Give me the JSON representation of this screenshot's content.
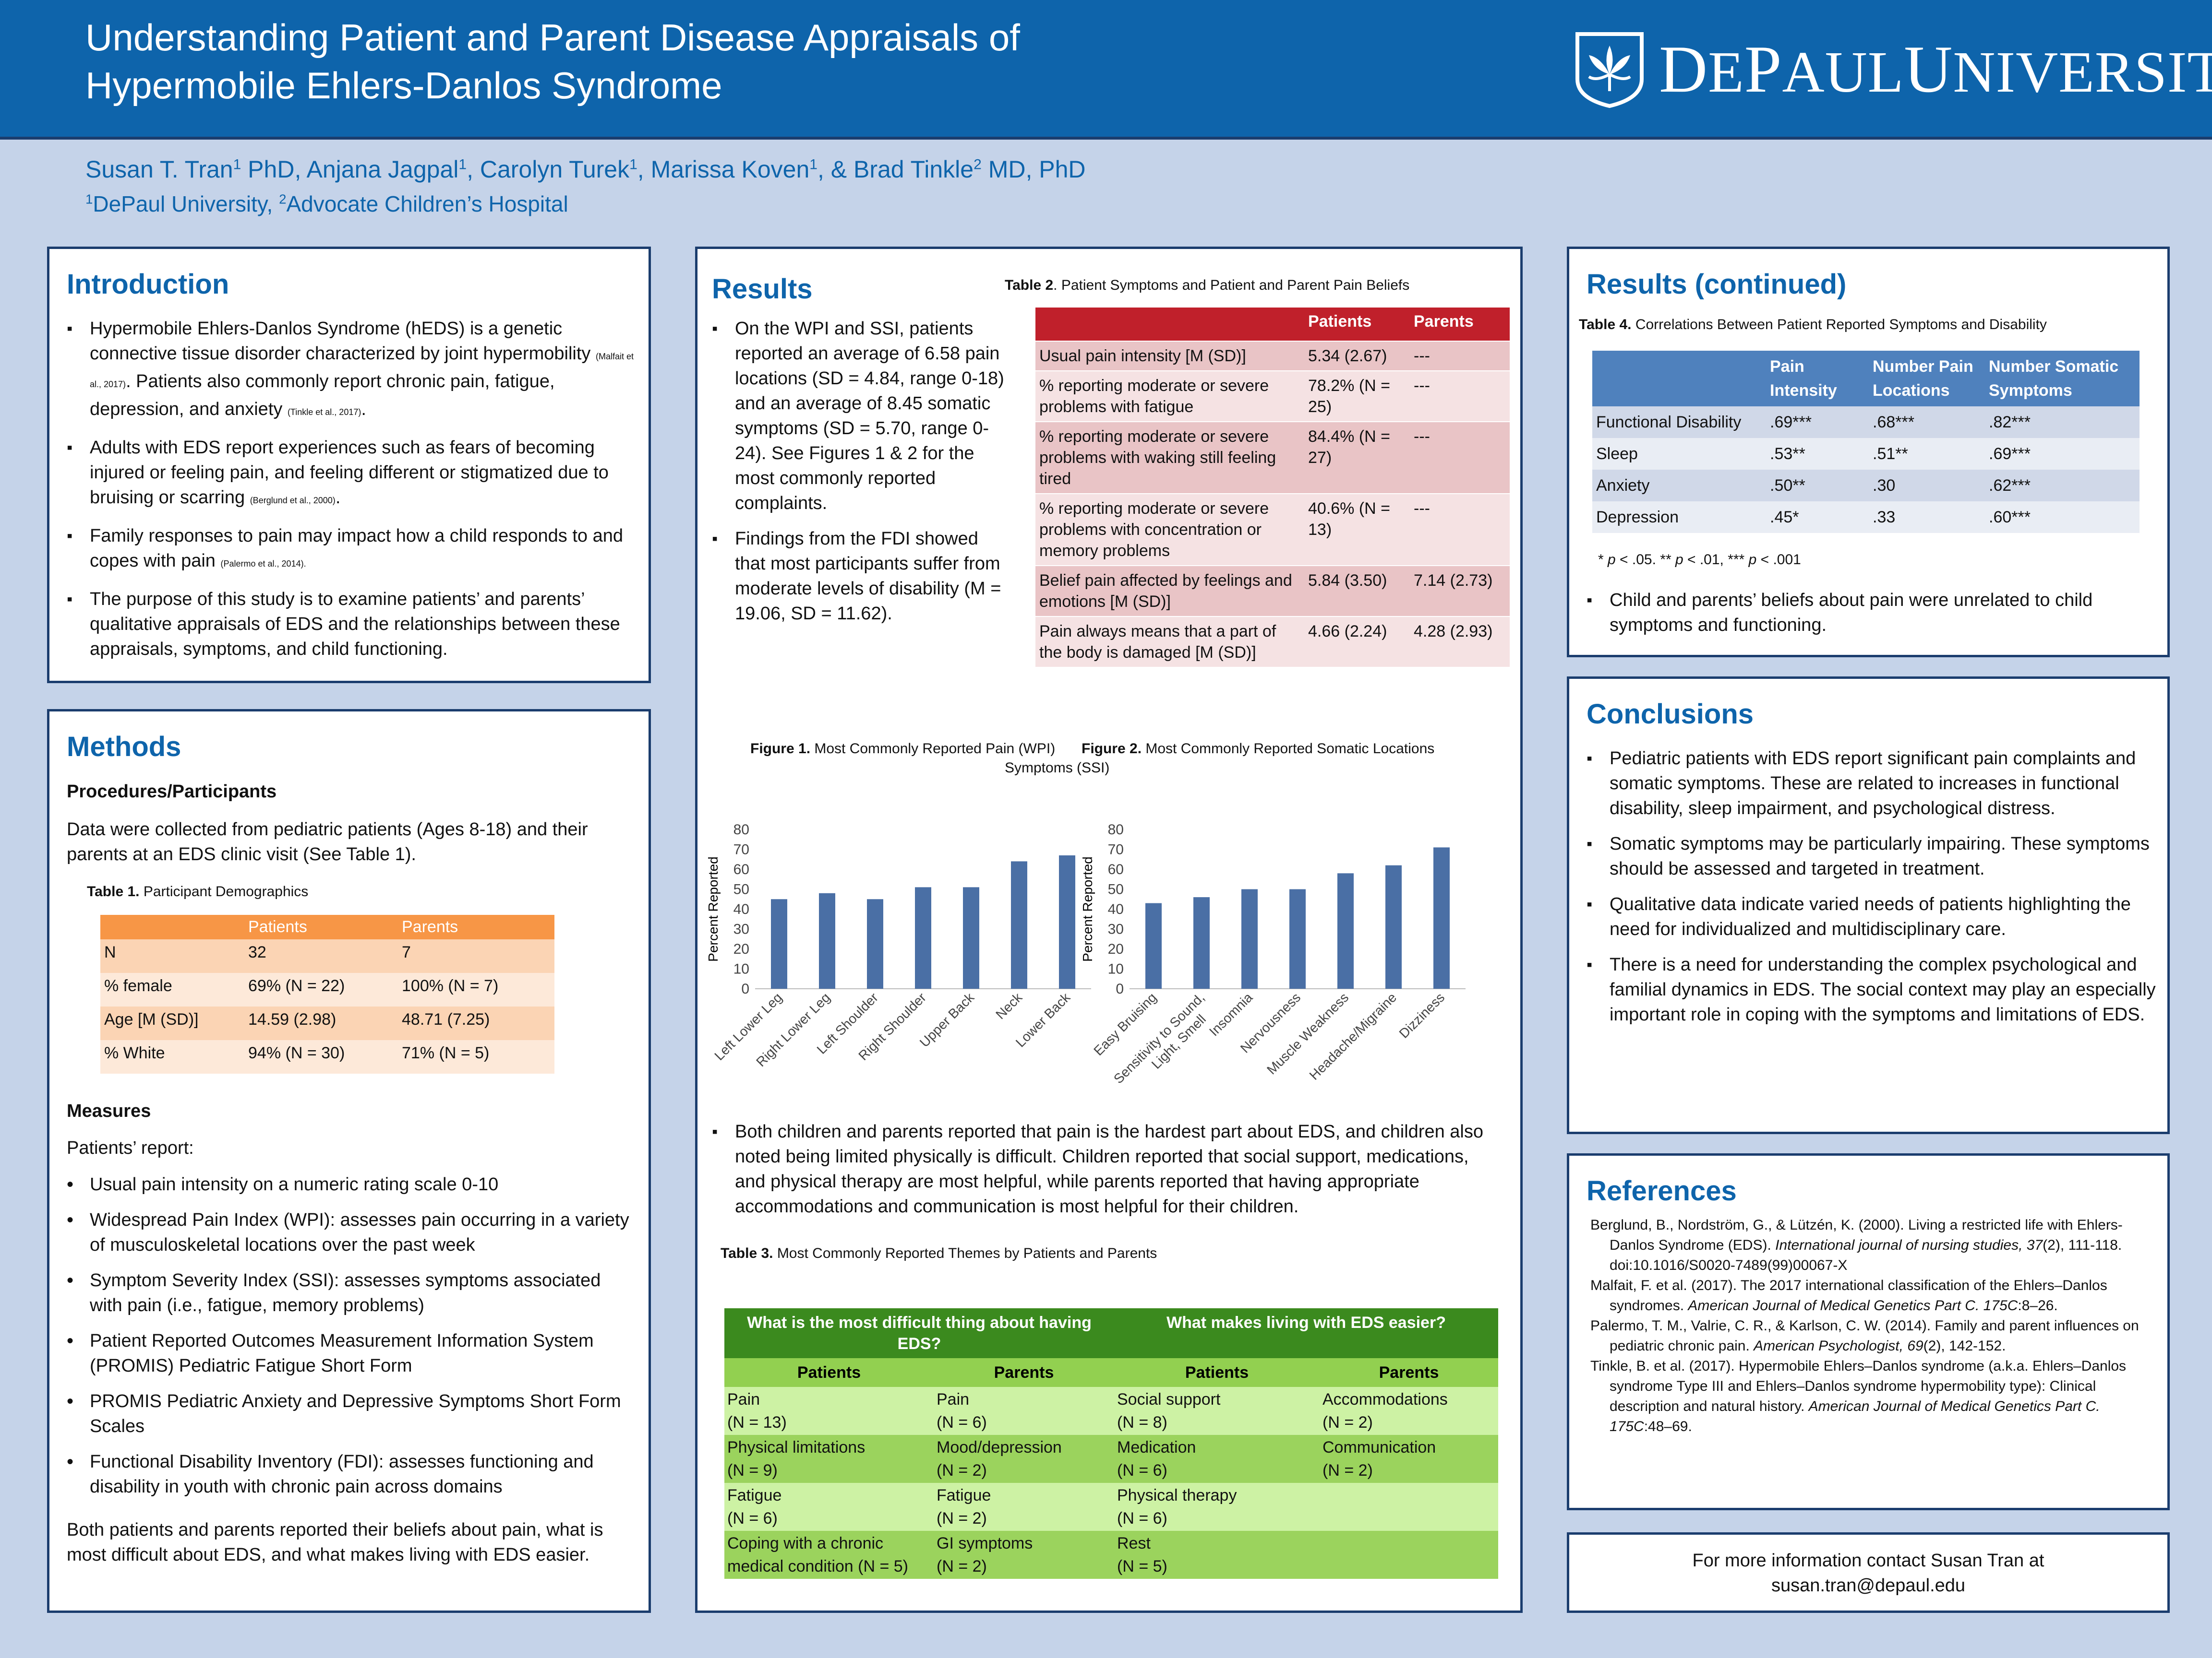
{
  "header": {
    "title_line1": "Understanding Patient and Parent Disease Appraisals of",
    "title_line2": "Hypermobile Ehlers-Danlos Syndrome",
    "logo_text": "DePaul University",
    "logo_text_first": "D",
    "logo_text_mid1": "E",
    "logo_text_p": "P",
    "logo_text_mid2": "AUL",
    "logo_text_u": "U",
    "logo_text_mid3": "NIVERSITY"
  },
  "authors": {
    "a1": "Susan T. Tran",
    "a1_sup": "1",
    "a1_suffix": " PhD, Anjana Jagpal",
    "a2_sup": "1",
    "a3": ", Carolyn Turek",
    "a3_sup": "1",
    "a4": ", Marissa Koven",
    "a4_sup": "1",
    "a5": ", & Brad Tinkle",
    "a5_sup": "2",
    "a5_suffix": " MD, PhD",
    "aff1_sup": "1",
    "aff1": "DePaul University, ",
    "aff2_sup": "2",
    "aff2": "Advocate Children’s Hospital"
  },
  "introduction": {
    "heading": "Introduction",
    "b1": "Hypermobile Ehlers-Danlos Syndrome (hEDS) is a genetic connective tissue disorder characterized by joint hypermobility ",
    "b1_cite": "(Malfait et al., 2017)",
    "b1_tail": ". Patients also commonly report chronic pain, fatigue, depression, and anxiety ",
    "b1_cite2": "(Tinkle et al., 2017)",
    "b1_end": ".",
    "b2": "Adults with EDS report experiences such as fears of becoming injured or feeling pain, and feeling different or stigmatized due to bruising or scarring ",
    "b2_cite": "(Berglund et al., 2000)",
    "b2_end": ".",
    "b3": "Family responses to pain may impact how a child responds to and copes with pain ",
    "b3_cite": "(Palermo et al., 2014).",
    "b4": "The purpose of this study is to examine patients’ and parents’ qualitative appraisals of EDS and the relationships between these appraisals, symptoms, and child functioning."
  },
  "methods": {
    "heading": "Methods",
    "sub1": "Procedures/Participants",
    "p1": "Data were collected from pediatric patients (Ages 8-18) and their parents at an EDS clinic visit (See Table 1).",
    "table1_caption_bold": "Table 1.",
    "table1_caption": " Participant Demographics",
    "table1_headers": [
      "",
      "Patients",
      "Parents"
    ],
    "table1_rows": [
      [
        "N",
        "32",
        "7"
      ],
      [
        "% female",
        "69% (N = 22)",
        "100% (N = 7)"
      ],
      [
        "Age [M (SD)]",
        "14.59 (2.98)",
        "48.71 (7.25)"
      ],
      [
        "% White",
        "94% (N = 30)",
        "71% (N = 5)"
      ]
    ],
    "sub2": "Measures",
    "p2": "Patients’ report:",
    "measures": [
      "Usual pain intensity on a numeric rating scale 0-10",
      "Widespread Pain Index (WPI): assesses pain occurring in a variety of musculoskeletal locations over the past week",
      "Symptom Severity Index (SSI): assesses symptoms associated with pain (i.e., fatigue, memory problems)",
      "Patient Reported Outcomes Measurement Information System (PROMIS) Pediatric Fatigue Short Form",
      "PROMIS Pediatric Anxiety and Depressive Symptoms Short Form Scales",
      "Functional Disability Inventory (FDI): assesses functioning and disability in youth with chronic pain across domains"
    ],
    "p3": "Both patients and parents reported their beliefs about pain, what is most difficult about EDS, and what makes living with EDS easier."
  },
  "results": {
    "heading": "Results",
    "b1": "On the WPI and SSI, patients reported an average of 6.58 pain locations (SD = 4.84, range 0-18) and an average of 8.45 somatic symptoms (SD = 5.70, range 0-24). See Figures 1 & 2 for the most commonly reported complaints.",
    "b2": "Findings from the FDI showed that most participants suffer from moderate levels of disability (M = 19.06, SD = 11.62).",
    "table2_caption_bold": "Table 2",
    "table2_caption": ". Patient Symptoms and Patient and Parent Pain Beliefs",
    "table2_headers": [
      "",
      "Patients",
      "Parents"
    ],
    "table2_rows": [
      [
        "Usual pain intensity [M (SD)]",
        "5.34 (2.67)",
        "---"
      ],
      [
        "% reporting moderate or severe problems with fatigue",
        "78.2% (N = 25)",
        "---"
      ],
      [
        "% reporting moderate or severe problems with waking still feeling tired",
        "84.4% (N = 27)",
        "---"
      ],
      [
        "% reporting moderate or severe problems with concentration or memory problems",
        "40.6% (N = 13)",
        "---"
      ],
      [
        "Belief pain affected by  feelings and emotions [M (SD)]",
        "5.84 (3.50)",
        "7.14 (2.73)"
      ],
      [
        "Pain always means that a part of the body is damaged [M (SD)]",
        "4.66 (2.24)",
        "4.28 (2.93)"
      ]
    ],
    "fig1_caption_bold": "Figure 1.",
    "fig1_caption": " Most Commonly Reported Pain (WPI)",
    "fig2_caption_bold": "Figure 2.",
    "fig2_caption": " Most Commonly Reported Somatic Symptoms (SSI)",
    "fig2_caption_l1": " Most Commonly Reported Somatic Locations",
    "fig2_caption_l2": "Symptoms (SSI)",
    "b3": "Both children and parents reported that pain is the hardest part about EDS, and children also noted being limited physically is difficult.  Children reported that social support, medications, and physical therapy are most helpful, while parents reported that having appropriate accommodations and communication is most helpful for their children.",
    "table3_caption_bold": "Table 3.",
    "table3_caption": " Most Commonly Reported Themes by Patients and Parents",
    "table3_group1": "What is the most difficult thing about having EDS?",
    "table3_group2": "What makes living with EDS easier?",
    "table3_sub": [
      "Patients",
      "Parents",
      "Patients",
      "Parents"
    ],
    "table3_rows": [
      [
        "Pain\n(N = 13)",
        "Pain\n(N = 6)",
        " Social support\n(N = 8)",
        "Accommodations\n(N = 2)"
      ],
      [
        "Physical limitations\n(N = 9)",
        "Mood/depression\n(N = 2)",
        " Medication\n(N = 6)",
        "Communication\n(N = 2)"
      ],
      [
        "Fatigue\n(N = 6)",
        "Fatigue\n(N = 2)",
        " Physical therapy\n(N = 6)",
        ""
      ],
      [
        "Coping with a chronic medical condition (N = 5)",
        "GI symptoms\n(N = 2)",
        " Rest\n(N = 5)",
        ""
      ]
    ]
  },
  "chart_data": [
    {
      "type": "bar",
      "title": "Figure 1. Most Commonly Reported Pain (WPI)",
      "categories": [
        "Left Lower Leg",
        "Right Lower Leg",
        "Left Shoulder",
        "Right Shoulder",
        "Upper Back",
        "Neck",
        "Lower Back"
      ],
      "values": [
        45,
        48,
        45,
        51,
        51,
        64,
        67
      ],
      "ylabel": "Percent Reported",
      "xlabel": "",
      "ylim": [
        0,
        80
      ],
      "yticks": [
        "0",
        "10",
        "20",
        "30",
        "40",
        "50",
        "60",
        "70",
        "80"
      ],
      "color": "#4a6fa5"
    },
    {
      "type": "bar",
      "title": "Figure 2. Most Commonly Reported Somatic Symptoms (SSI)",
      "categories": [
        "Easy Bruising",
        "Sensitivity to Sound, Light, Smell",
        "Insomnia",
        "Nervousness",
        "Muscle Weakness",
        "Headache/Migraine",
        "Dizziness"
      ],
      "categories_l1": [
        "Easy Bruising",
        "Sensitivity to Sound,",
        "Insomnia",
        "Nervousness",
        "Muscle Weakness",
        "Headache/Migraine",
        "Dizziness"
      ],
      "categories_l2": [
        "",
        "Light, Smell",
        "",
        "",
        "",
        "",
        ""
      ],
      "values": [
        43,
        46,
        50,
        50,
        58,
        62,
        71
      ],
      "ylabel": "Percent Reported",
      "xlabel": "",
      "ylim": [
        0,
        80
      ],
      "yticks": [
        "0",
        "10",
        "20",
        "30",
        "40",
        "50",
        "60",
        "70",
        "80"
      ],
      "color": "#4a6fa5"
    }
  ],
  "results2": {
    "heading": "Results (continued)",
    "table4_caption_bold": "Table 4.",
    "table4_caption": " Correlations Between Patient Reported Symptoms and Disability",
    "table4_headers": [
      "",
      "Pain Intensity",
      "Number Pain Locations",
      "Number Somatic Symptoms"
    ],
    "table4_rows": [
      [
        "Functional Disability",
        ".69***",
        ".68***",
        ".82***"
      ],
      [
        "Sleep",
        ".53**",
        ".51**",
        ".69***"
      ],
      [
        "Anxiety",
        ".50**",
        ".30",
        ".62***"
      ],
      [
        "Depression",
        ".45*",
        ".33",
        ".60***"
      ]
    ],
    "note_s1": "* ",
    "note_p1": "p",
    "note_s2": " < .05. ** ",
    "note_p2": "p",
    "note_s3": " < .01, *** ",
    "note_p3": "p",
    "note_s4": " < .001",
    "b1": "Child and parents’ beliefs about pain were unrelated to child symptoms and functioning."
  },
  "conclusions": {
    "heading": "Conclusions",
    "items": [
      "Pediatric patients with EDS report significant pain complaints and somatic symptoms.  These are related to increases in functional disability, sleep impairment, and psychological distress.",
      "Somatic symptoms may be particularly impairing.  These symptoms should be assessed and targeted in treatment.",
      "Qualitative data indicate varied needs of patients highlighting the need for individualized and multidisciplinary care.",
      "There is a need for understanding the complex psychological and familial dynamics in EDS.  The social context may play an especially important role in coping with the symptoms and limitations of EDS."
    ]
  },
  "references": {
    "heading": "References",
    "r1a": "Berglund, B., Nordström, G., & Lützén, K. (2000). Living a restricted life with Ehlers-Danlos Syndrome (EDS). ",
    "r1i": "International journal of nursing studies, 37",
    "r1b": "(2), 111-118. doi:10.1016/S0020-7489(99)00067-X",
    "r2a": "Malfait, F. et al. (2017). The 2017 international classification of the Ehlers–Danlos syndromes. ",
    "r2i": "American Journal of Medical Genetics Part C. 175C",
    "r2b": ":8–26.",
    "r3a": "Palermo, T. M., Valrie, C. R., & Karlson, C. W. (2014). Family and parent influences on pediatric chronic pain. ",
    "r3i": "American Psychologist, 69",
    "r3b": "(2), 142-152.",
    "r4a": "Tinkle, B. et al. (2017). Hypermobile Ehlers–Danlos syndrome (a.k.a. Ehlers–Danlos syndrome Type III and Ehlers–Danlos syndrome hypermobility type): Clinical description and natural history. ",
    "r4i": "American Journal of Medical Genetics Part C. 175C",
    "r4b": ":48–69."
  },
  "contact": {
    "line1": "For more information contact Susan Tran at",
    "line2": "susan.tran@depaul.edu"
  }
}
